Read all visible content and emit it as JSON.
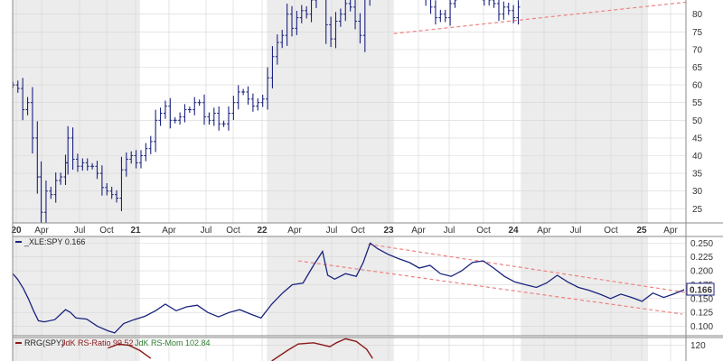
{
  "chart_data": [
    {
      "type": "line",
      "style": "ohlc-bars",
      "series": [
        {
          "values": [
            [
              "2020-01-02",
              60
            ],
            [
              "2020-01-16",
              59
            ],
            [
              "2020-01-30",
              53
            ],
            [
              "2020-02-13",
              55
            ],
            [
              "2020-02-27",
              45
            ],
            [
              "2020-03-12",
              34
            ],
            [
              "2020-03-23",
              24
            ],
            [
              "2020-04-06",
              30
            ],
            [
              "2020-04-20",
              29
            ],
            [
              "2020-05-04",
              33
            ],
            [
              "2020-05-18",
              34
            ],
            [
              "2020-06-01",
              38
            ],
            [
              "2020-06-08",
              45
            ],
            [
              "2020-06-22",
              39
            ],
            [
              "2020-07-06",
              37
            ],
            [
              "2020-07-20",
              38
            ],
            [
              "2020-08-03",
              37
            ],
            [
              "2020-08-17",
              37
            ],
            [
              "2020-08-31",
              35
            ],
            [
              "2020-09-14",
              31
            ],
            [
              "2020-09-28",
              30
            ],
            [
              "2020-10-12",
              29
            ],
            [
              "2020-10-26",
              28
            ],
            [
              "2020-11-09",
              36
            ],
            [
              "2020-11-23",
              39
            ],
            [
              "2020-12-07",
              40
            ],
            [
              "2020-12-21",
              38
            ],
            [
              "2021-01-04",
              40
            ],
            [
              "2021-01-18",
              42
            ],
            [
              "2021-02-01",
              44
            ],
            [
              "2021-02-15",
              50
            ],
            [
              "2021-03-01",
              52
            ],
            [
              "2021-03-15",
              54
            ],
            [
              "2021-03-29",
              50
            ],
            [
              "2021-04-12",
              50
            ],
            [
              "2021-04-26",
              51
            ],
            [
              "2021-05-10",
              53
            ],
            [
              "2021-05-24",
              53
            ],
            [
              "2021-06-07",
              55
            ],
            [
              "2021-06-21",
              55
            ],
            [
              "2021-07-05",
              51
            ],
            [
              "2021-07-19",
              50
            ],
            [
              "2021-08-02",
              52
            ],
            [
              "2021-08-16",
              49
            ],
            [
              "2021-08-30",
              49
            ],
            [
              "2021-09-13",
              52
            ],
            [
              "2021-09-27",
              55
            ],
            [
              "2021-10-11",
              58
            ],
            [
              "2021-10-25",
              58
            ],
            [
              "2021-11-08",
              56
            ],
            [
              "2021-11-22",
              54
            ],
            [
              "2021-12-06",
              55
            ],
            [
              "2021-12-20",
              56
            ],
            [
              "2022-01-03",
              62
            ],
            [
              "2022-01-17",
              68
            ],
            [
              "2022-01-31",
              72
            ],
            [
              "2022-02-14",
              74
            ],
            [
              "2022-02-28",
              80
            ],
            [
              "2022-03-14",
              76
            ],
            [
              "2022-03-28",
              79
            ],
            [
              "2022-04-11",
              81
            ],
            [
              "2022-04-25",
              80
            ],
            [
              "2022-05-09",
              84
            ],
            [
              "2022-05-23",
              88
            ],
            [
              "2022-06-06",
              90
            ],
            [
              "2022-06-20",
              77
            ],
            [
              "2022-07-04",
              73
            ],
            [
              "2022-07-18",
              78
            ],
            [
              "2022-08-01",
              80
            ],
            [
              "2022-08-15",
              83
            ],
            [
              "2022-08-29",
              82
            ],
            [
              "2022-09-12",
              78
            ],
            [
              "2022-09-26",
              74
            ],
            [
              "2022-10-10",
              85
            ],
            [
              "2022-10-24",
              90
            ],
            [
              "2023-04-03",
              85
            ],
            [
              "2023-04-17",
              82
            ],
            [
              "2023-05-01",
              79
            ],
            [
              "2023-05-15",
              80
            ],
            [
              "2023-05-29",
              79
            ],
            [
              "2023-06-12",
              83
            ],
            [
              "2023-06-26",
              84
            ],
            [
              "2023-09-18",
              86
            ],
            [
              "2023-10-02",
              84
            ],
            [
              "2023-10-16",
              83
            ],
            [
              "2023-10-30",
              80
            ],
            [
              "2023-11-13",
              82
            ],
            [
              "2023-11-27",
              81
            ],
            [
              "2023-12-11",
              79
            ],
            [
              "2023-12-25",
              82
            ]
          ]
        }
      ],
      "xticks": [
        "20",
        "Apr",
        "Jul",
        "Oct",
        "21",
        "Apr",
        "Jul",
        "Oct",
        "22",
        "Apr",
        "Jul",
        "Oct",
        "23",
        "Apr",
        "Jul",
        "Oct",
        "24",
        "Apr",
        "Jul",
        "Oct",
        "25",
        "Apr"
      ],
      "xticks_bold": [
        "20",
        "21",
        "22",
        "23",
        "24",
        "25"
      ],
      "yticks": [
        25,
        30,
        35,
        40,
        45,
        50,
        55,
        60,
        65,
        70,
        75,
        80
      ],
      "xlim": [
        "2020-01-01",
        "2025-04-20"
      ],
      "ylim": [
        21,
        84
      ],
      "trendline": {
        "from": [
          "2023-01-01",
          74.5
        ],
        "to": [
          "2025-05-01",
          83.5
        ],
        "color": "#f08080"
      },
      "grid": true,
      "shading": "alternate-years",
      "bar_color": "#1a237e"
    },
    {
      "type": "line",
      "legend": {
        "label": "_XLE:SPY 0.166",
        "placement": "top-left"
      },
      "series": [
        {
          "name": "_XLE:SPY",
          "values": [
            [
              "2020-01-01",
              0.195
            ],
            [
              "2020-01-15",
              0.185
            ],
            [
              "2020-02-01",
              0.168
            ],
            [
              "2020-02-15",
              0.15
            ],
            [
              "2020-03-01",
              0.128
            ],
            [
              "2020-03-15",
              0.11
            ],
            [
              "2020-04-01",
              0.108
            ],
            [
              "2020-05-01",
              0.112
            ],
            [
              "2020-06-01",
              0.13
            ],
            [
              "2020-06-15",
              0.125
            ],
            [
              "2020-07-01",
              0.115
            ],
            [
              "2020-08-01",
              0.113
            ],
            [
              "2020-09-01",
              0.1
            ],
            [
              "2020-10-01",
              0.092
            ],
            [
              "2020-10-20",
              0.088
            ],
            [
              "2020-11-15",
              0.105
            ],
            [
              "2020-12-15",
              0.112
            ],
            [
              "2021-01-15",
              0.118
            ],
            [
              "2021-02-15",
              0.128
            ],
            [
              "2021-03-15",
              0.14
            ],
            [
              "2021-04-15",
              0.128
            ],
            [
              "2021-05-15",
              0.135
            ],
            [
              "2021-06-15",
              0.138
            ],
            [
              "2021-07-15",
              0.125
            ],
            [
              "2021-08-15",
              0.117
            ],
            [
              "2021-09-15",
              0.125
            ],
            [
              "2021-10-15",
              0.13
            ],
            [
              "2021-11-15",
              0.122
            ],
            [
              "2021-12-15",
              0.115
            ],
            [
              "2022-01-15",
              0.14
            ],
            [
              "2022-02-15",
              0.16
            ],
            [
              "2022-03-15",
              0.175
            ],
            [
              "2022-04-15",
              0.178
            ],
            [
              "2022-05-15",
              0.21
            ],
            [
              "2022-06-10",
              0.235
            ],
            [
              "2022-06-25",
              0.192
            ],
            [
              "2022-07-15",
              0.185
            ],
            [
              "2022-08-15",
              0.195
            ],
            [
              "2022-09-15",
              0.19
            ],
            [
              "2022-10-05",
              0.215
            ],
            [
              "2022-10-25",
              0.25
            ],
            [
              "2022-11-15",
              0.24
            ],
            [
              "2022-12-15",
              0.23
            ],
            [
              "2023-01-15",
              0.222
            ],
            [
              "2023-02-15",
              0.215
            ],
            [
              "2023-03-15",
              0.205
            ],
            [
              "2023-04-15",
              0.21
            ],
            [
              "2023-05-15",
              0.195
            ],
            [
              "2023-06-15",
              0.19
            ],
            [
              "2023-07-15",
              0.2
            ],
            [
              "2023-08-15",
              0.215
            ],
            [
              "2023-09-15",
              0.218
            ],
            [
              "2023-10-15",
              0.205
            ],
            [
              "2023-11-15",
              0.19
            ],
            [
              "2023-12-15",
              0.18
            ],
            [
              "2024-01-15",
              0.175
            ],
            [
              "2024-02-15",
              0.17
            ],
            [
              "2024-03-15",
              0.178
            ],
            [
              "2024-04-15",
              0.192
            ],
            [
              "2024-05-15",
              0.18
            ],
            [
              "2024-06-15",
              0.17
            ],
            [
              "2024-07-15",
              0.165
            ],
            [
              "2024-08-15",
              0.158
            ],
            [
              "2024-09-15",
              0.15
            ],
            [
              "2024-10-15",
              0.158
            ],
            [
              "2024-11-15",
              0.152
            ],
            [
              "2024-12-15",
              0.145
            ],
            [
              "2025-01-15",
              0.16
            ],
            [
              "2025-02-15",
              0.152
            ],
            [
              "2025-03-15",
              0.158
            ],
            [
              "2025-04-15",
              0.166
            ]
          ]
        }
      ],
      "trendlines": [
        {
          "from": [
            "2022-10-20",
            0.248
          ],
          "to": [
            "2025-04-30",
            0.16
          ],
          "color": "#f08080"
        },
        {
          "from": [
            "2022-04-01",
            0.218
          ],
          "to": [
            "2025-04-10",
            0.122
          ],
          "color": "#f08080"
        }
      ],
      "yticks": [
        0.1,
        0.125,
        0.15,
        0.175,
        0.2,
        0.225,
        0.25
      ],
      "last_value": "0.166",
      "xlim": [
        "2020-01-01",
        "2025-04-20"
      ],
      "ylim": [
        0.083,
        0.262
      ],
      "grid": true,
      "line_color": "#1a237e"
    },
    {
      "type": "line",
      "legend": {
        "prefix": "RRG(SPY)",
        "ratio_label": "JdK RS-Ratio 99.52",
        "mom_label": "JdK RS-Mom 102.84",
        "placement": "top-left"
      },
      "series": [
        {
          "name": "JdK RS-Ratio",
          "values": [
            [
              "2020-10-01",
              118
            ],
            [
              "2020-11-01",
              121
            ],
            [
              "2020-12-01",
              120
            ],
            [
              "2021-01-01",
              116
            ],
            [
              "2021-02-01",
              110
            ],
            [
              "2022-01-15",
              108
            ],
            [
              "2022-03-01",
              116
            ],
            [
              "2022-04-01",
              121
            ],
            [
              "2022-05-15",
              122
            ],
            [
              "2022-07-01",
              119
            ],
            [
              "2022-07-20",
              122
            ],
            [
              "2022-08-15",
              125
            ],
            [
              "2022-09-15",
              123
            ],
            [
              "2022-10-15",
              117
            ],
            [
              "2022-11-01",
              110
            ]
          ]
        }
      ],
      "yticks": [
        120
      ],
      "xlim": [
        "2020-01-01",
        "2025-04-20"
      ],
      "ylim": [
        108,
        126
      ],
      "grid": true,
      "line_color": "#8b1a1a"
    }
  ]
}
